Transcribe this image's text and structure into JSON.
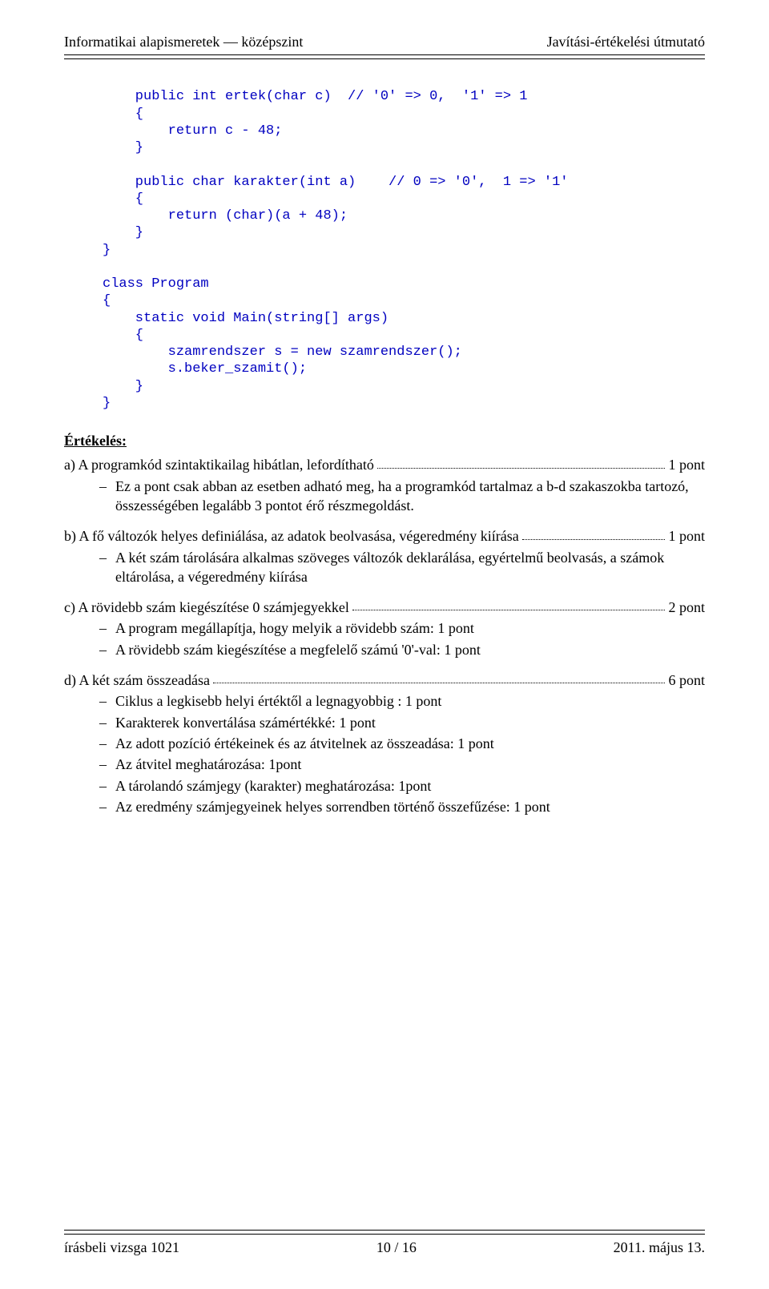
{
  "header": {
    "left": "Informatikai alapismeretek — középszint",
    "right": "Javítási-értékelési útmutató"
  },
  "code": {
    "color": "#0000c0",
    "lines": [
      "    public int ertek(char c)  // '0' => 0,  '1' => 1",
      "    {",
      "        return c - 48;",
      "    }",
      "",
      "    public char karakter(int a)    // 0 => '0',  1 => '1'",
      "    {",
      "        return (char)(a + 48);",
      "    }",
      "}",
      "",
      "class Program",
      "{",
      "    static void Main(string[] args)",
      "    {",
      "        szamrendszer s = new szamrendszer();",
      "        s.beker_szamit();",
      "    }",
      "}"
    ]
  },
  "evaluation": {
    "title": "Értékelés:",
    "items": [
      {
        "lead": "a) A programkód szintaktikailag hibátlan, lefordítható",
        "points": "1 pont",
        "subs": [
          "Ez a pont csak abban az esetben adható meg, ha a programkód tartalmaz a b-d szakaszokba tartozó, összességében legalább 3 pontot érő részmegoldást."
        ]
      },
      {
        "lead": "b) A fő változók helyes definiálása, az adatok beolvasása, végeredmény kiírása",
        "points": "1 pont",
        "subs": [
          "A két szám tárolására alkalmas szöveges változók deklarálása, egyértelmű beolvasás, a számok eltárolása, a végeredmény kiírása"
        ]
      },
      {
        "lead": "c) A rövidebb szám kiegészítése 0 számjegyekkel",
        "points": "2 pont",
        "subs": [
          "A program megállapítja, hogy melyik a rövidebb szám: 1 pont",
          "A rövidebb szám kiegészítése a megfelelő számú '0'-val: 1 pont"
        ]
      },
      {
        "lead": "d) A két szám összeadása",
        "points": "6 pont",
        "subs": [
          "Ciklus a legkisebb helyi értéktől a legnagyobbig : 1 pont",
          "Karakterek konvertálása számértékké: 1 pont",
          "Az adott pozíció értékeinek és az átvitelnek az összeadása: 1 pont",
          "Az átvitel meghatározása: 1pont",
          "A tárolandó számjegy (karakter) meghatározása: 1pont",
          "Az eredmény számjegyeinek helyes sorrendben történő összefűzése: 1 pont"
        ]
      }
    ]
  },
  "footer": {
    "left": "írásbeli vizsga 1021",
    "center": "10 / 16",
    "right": "2011. május 13."
  }
}
